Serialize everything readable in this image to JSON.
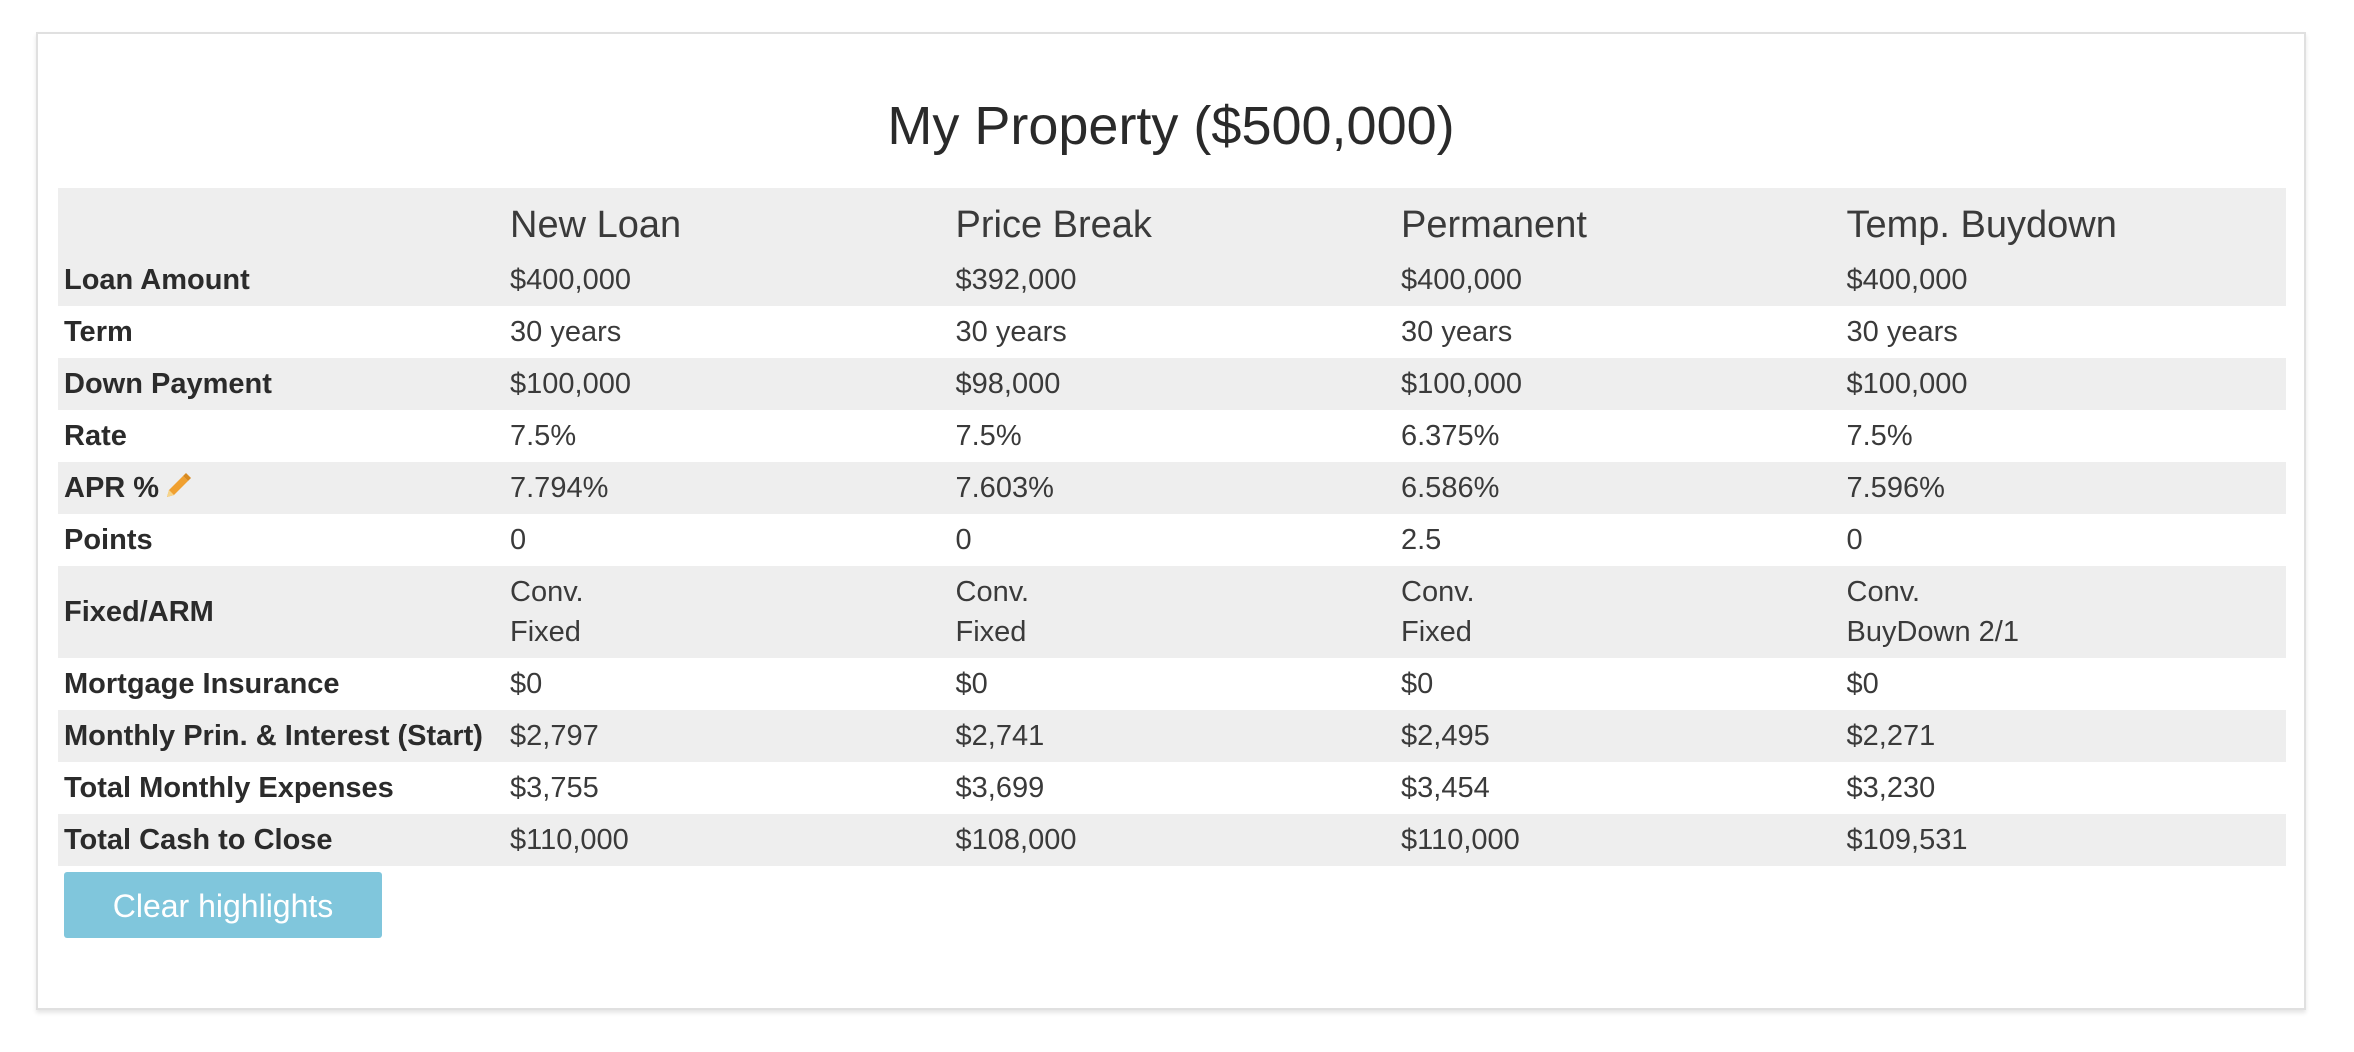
{
  "title": "My Property ($500,000)",
  "columns": [
    "New Loan",
    "Price Break",
    "Permanent",
    "Temp. Buydown"
  ],
  "column_colors": [
    "#5b3f97",
    "#c2221e",
    "#33665f",
    "#6e9a3a"
  ],
  "edit_icon": "pencil-icon",
  "rows": [
    {
      "label": "Loan Amount",
      "values": [
        "$400,000",
        "$392,000",
        "$400,000",
        "$400,000"
      ]
    },
    {
      "label": "Term",
      "values": [
        "30 years",
        "30 years",
        "30 years",
        "30 years"
      ]
    },
    {
      "label": "Down Payment",
      "values": [
        "$100,000",
        "$98,000",
        "$100,000",
        "$100,000"
      ]
    },
    {
      "label": "Rate",
      "values": [
        "7.5%",
        "7.5%",
        "6.375%",
        "7.5%"
      ]
    },
    {
      "label": "APR %",
      "values": [
        "7.794%",
        "7.603%",
        "6.586%",
        "7.596%"
      ]
    },
    {
      "label": "Points",
      "values": [
        "0",
        "0",
        "2.5",
        "0"
      ]
    },
    {
      "label": "Fixed/ARM",
      "values": [
        {
          "line1": "Conv.",
          "line2": "Fixed"
        },
        {
          "line1": "Conv.",
          "line2": "Fixed"
        },
        {
          "line1": "Conv.",
          "line2": "Fixed"
        },
        {
          "line1": "Conv.",
          "line2": "BuyDown 2/1"
        }
      ]
    },
    {
      "label": "Mortgage Insurance",
      "values": [
        "$0",
        "$0",
        "$0",
        "$0"
      ]
    },
    {
      "label": "Monthly Prin. & Interest (Start)",
      "values": [
        "$2,797",
        "$2,741",
        "$2,495",
        "$2,271"
      ]
    },
    {
      "label": "Total Monthly Expenses",
      "values": [
        "$3,755",
        "$3,699",
        "$3,454",
        "$3,230"
      ]
    },
    {
      "label": "Total Cash to Close",
      "values": [
        "$110,000",
        "$108,000",
        "$110,000",
        "$109,531"
      ]
    }
  ],
  "clear_button_label": "Clear highlights",
  "accent_colors": {
    "button": "#80c6dc",
    "stripe": "#eeeeee"
  }
}
